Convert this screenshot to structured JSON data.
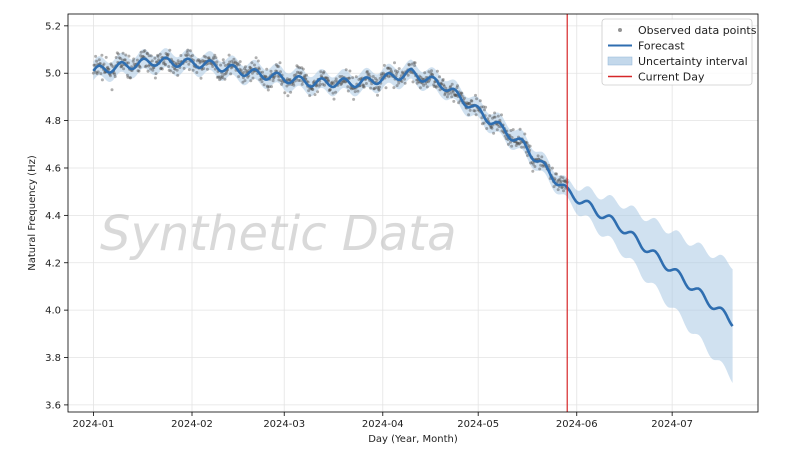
{
  "chart_data": {
    "type": "scatter",
    "xlabel": "Day (Year, Month)",
    "ylabel": "Natural Frequency (Hz)",
    "watermark": "Synthetic Data",
    "x_range": [
      "2023-12-24",
      "2024-07-28"
    ],
    "ylim": [
      3.57,
      5.25
    ],
    "grid": true,
    "legend_position": "top-right",
    "x_ticks": [
      "2024-01",
      "2024-02",
      "2024-03",
      "2024-04",
      "2024-05",
      "2024-06",
      "2024-07"
    ],
    "y_ticks": [
      3.6,
      3.8,
      4.0,
      4.2,
      4.4,
      4.6,
      4.8,
      5.0,
      5.2
    ],
    "current_day": "2024-05-29",
    "colors": {
      "observed": "#4d4d4d",
      "forecast": "#2f6eb0",
      "uncertainty": "#a9c8e3",
      "current_day": "#d62728"
    },
    "series": [
      {
        "name": "Observed data points",
        "kind": "scatter",
        "x_start": "2024-01-01",
        "x_end": "2024-05-29",
        "trend": [
          [
            "2024-01-01",
            5.01
          ],
          [
            "2024-01-20",
            5.05
          ],
          [
            "2024-02-05",
            5.04
          ],
          [
            "2024-02-20",
            5.0
          ],
          [
            "2024-03-10",
            4.96
          ],
          [
            "2024-03-25",
            4.96
          ],
          [
            "2024-04-10",
            5.0
          ],
          [
            "2024-04-20",
            4.95
          ],
          [
            "2024-05-01",
            4.84
          ],
          [
            "2024-05-15",
            4.7
          ],
          [
            "2024-05-29",
            4.5
          ]
        ]
      },
      {
        "name": "Forecast",
        "kind": "line",
        "trend": [
          [
            "2024-01-01",
            5.01
          ],
          [
            "2024-01-20",
            5.05
          ],
          [
            "2024-02-05",
            5.04
          ],
          [
            "2024-02-20",
            5.0
          ],
          [
            "2024-03-10",
            4.96
          ],
          [
            "2024-03-25",
            4.96
          ],
          [
            "2024-04-10",
            5.0
          ],
          [
            "2024-04-20",
            4.95
          ],
          [
            "2024-05-01",
            4.84
          ],
          [
            "2024-05-15",
            4.7
          ],
          [
            "2024-05-29",
            4.5
          ],
          [
            "2024-06-15",
            4.35
          ],
          [
            "2024-07-01",
            4.17
          ],
          [
            "2024-07-20",
            3.95
          ]
        ]
      },
      {
        "name": "Uncertainty interval",
        "kind": "band",
        "halfwidth": [
          [
            "2024-01-01",
            0.04
          ],
          [
            "2024-05-29",
            0.04
          ],
          [
            "2024-06-15",
            0.1
          ],
          [
            "2024-07-01",
            0.16
          ],
          [
            "2024-07-20",
            0.24
          ]
        ]
      },
      {
        "name": "Current Day",
        "kind": "vline"
      }
    ]
  }
}
